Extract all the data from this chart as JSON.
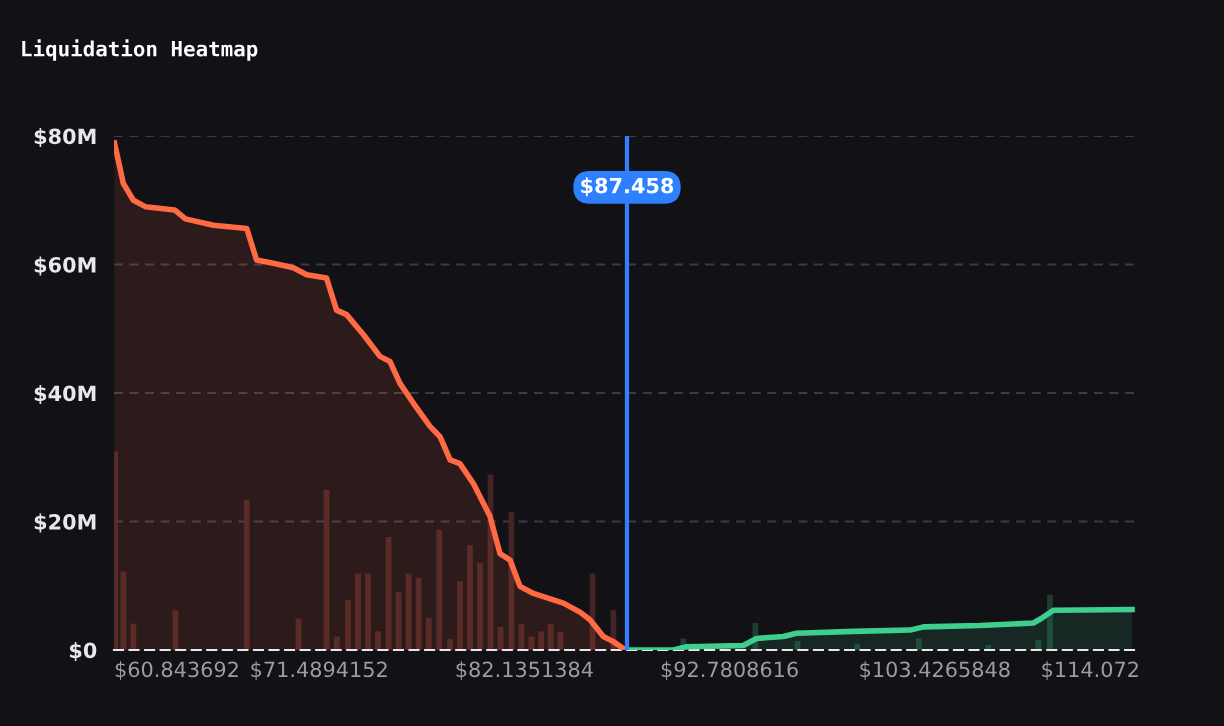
{
  "chart_data": {
    "type": "area",
    "title": "Liquidation Heatmap",
    "xlim": [
      60.843692,
      114.072
    ],
    "ylim": [
      0,
      80
    ],
    "xticks": [
      {
        "value": 60.843692,
        "label": "$60.843692"
      },
      {
        "value": 71.4894152,
        "label": "$71.4894152"
      },
      {
        "value": 82.1351384,
        "label": "$82.1351384"
      },
      {
        "value": 92.7808616,
        "label": "$92.7808616"
      },
      {
        "value": 103.4265848,
        "label": "$103.4265848"
      },
      {
        "value": 114.072,
        "label": "$114.072"
      }
    ],
    "yticks": [
      {
        "value": 0,
        "label": "$0"
      },
      {
        "value": 20,
        "label": "$20M"
      },
      {
        "value": 40,
        "label": "$40M"
      },
      {
        "value": 60,
        "label": "$60M"
      },
      {
        "value": 80,
        "label": "$80M"
      }
    ],
    "grid": "y",
    "legend": false,
    "series": [
      {
        "type": "bar",
        "color": "#4a2626",
        "x": [
          60.9,
          61.33,
          61.85,
          64.03,
          67.73,
          70.42,
          71.87,
          72.4,
          72.98,
          73.5,
          74.02,
          74.54,
          75.09,
          75.61,
          76.13,
          76.65,
          77.17,
          77.72,
          78.28,
          78.79,
          79.31,
          79.83,
          80.38,
          80.9,
          81.46,
          81.98,
          82.5,
          83.0,
          83.5,
          84.0,
          85.67,
          86.75
        ],
        "values": [
          30.9,
          12.2,
          4.1,
          6.2,
          23.3,
          4.9,
          24.9,
          2.1,
          7.8,
          11.9,
          11.9,
          2.9,
          17.6,
          9.0,
          11.9,
          11.2,
          5.0,
          18.7,
          1.7,
          10.7,
          16.3,
          13.5,
          27.3,
          3.6,
          21.5,
          4.1,
          2.1,
          2.9,
          4.1,
          2.8,
          11.9,
          6.2
        ]
      },
      {
        "type": "bar",
        "color": "#1d4434",
        "x": [
          90.38,
          94.12,
          96.3,
          99.4,
          102.6,
          106.2,
          108.8,
          109.4
        ],
        "values": [
          1.8,
          4.2,
          1.4,
          1.0,
          1.8,
          0.8,
          1.6,
          8.6
        ]
      },
      {
        "color": "#ff6a45",
        "x": [
          60.87,
          61.33,
          61.85,
          62.47,
          63.99,
          64.55,
          66.0,
          67.73,
          68.24,
          69.11,
          70.15,
          70.84,
          71.87,
          72.39,
          72.91,
          73.78,
          74.64,
          75.16,
          75.68,
          76.38,
          77.24,
          77.76,
          78.28,
          78.79,
          79.49,
          80.35,
          80.87,
          81.39,
          81.91,
          82.6,
          84.16,
          85.02,
          85.54,
          86.23,
          86.75,
          87.38
        ],
        "values": [
          78.9,
          72.6,
          70.0,
          69.0,
          68.5,
          67.1,
          66.1,
          65.6,
          60.7,
          60.2,
          59.5,
          58.4,
          57.9,
          52.9,
          52.2,
          49.1,
          45.7,
          44.9,
          41.5,
          38.4,
          34.8,
          33.2,
          29.6,
          29.0,
          25.9,
          20.8,
          15.0,
          14.0,
          9.9,
          8.8,
          7.3,
          5.9,
          4.7,
          2.1,
          1.3,
          0
        ]
      },
      {
        "color": "#3ecf8e",
        "x": [
          87.61,
          89.86,
          90.55,
          93.49,
          94.18,
          95.57,
          96.26,
          99.2,
          102.14,
          102.84,
          105.77,
          108.54,
          108.95,
          109.58,
          113.66
        ],
        "values": [
          0,
          0,
          0.5,
          0.7,
          1.8,
          2.1,
          2.6,
          2.9,
          3.1,
          3.6,
          3.8,
          4.2,
          4.9,
          6.2,
          6.3
        ]
      }
    ],
    "ref_lines": [
      {
        "axis": "x",
        "value": 87.458,
        "label": "$87.458",
        "color": "#2f80ff"
      }
    ]
  }
}
